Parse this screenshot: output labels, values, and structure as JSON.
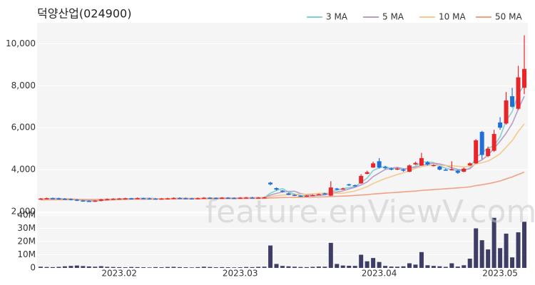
{
  "chart_data": {
    "type": "candlestick",
    "title": "덕양산업(024900)",
    "watermark": "feature.enViewV.com",
    "categories": [
      null,
      null,
      null,
      null,
      null,
      null,
      null,
      null,
      null,
      null,
      null,
      null,
      null,
      "2023.02",
      null,
      null,
      null,
      null,
      null,
      null,
      null,
      null,
      null,
      null,
      null,
      null,
      null,
      null,
      null,
      null,
      null,
      null,
      null,
      "2023.03",
      null,
      null,
      null,
      null,
      null,
      null,
      null,
      null,
      null,
      null,
      null,
      null,
      null,
      null,
      null,
      null,
      null,
      null,
      null,
      null,
      null,
      null,
      "2023.04",
      null,
      null,
      null,
      null,
      null,
      null,
      null,
      null,
      null,
      null,
      null,
      null,
      null,
      null,
      null,
      null,
      null,
      null,
      null,
      "2023.05",
      null,
      null,
      null,
      null
    ],
    "open": [
      2600,
      2620,
      2640,
      2630,
      2610,
      2600,
      2570,
      2530,
      2510,
      2500,
      2520,
      2580,
      2600,
      2610,
      2620,
      2630,
      2620,
      2640,
      2630,
      2620,
      2610,
      2620,
      2630,
      2650,
      2640,
      2630,
      2620,
      2640,
      2660,
      2650,
      2640,
      2660,
      2650,
      2640,
      2660,
      2670,
      2650,
      2670,
      3380,
      3120,
      3000,
      2870,
      2800,
      2760,
      2720,
      2760,
      2800,
      2870,
      2760,
      3100,
      3060,
      3300,
      3260,
      3350,
      3800,
      4100,
      4400,
      4120,
      4050,
      4000,
      4000,
      3900,
      4250,
      4200,
      4350,
      4180,
      4150,
      4000,
      4000,
      3950,
      3900,
      4200,
      4300,
      5800,
      4650,
      4900,
      6250,
      6200,
      7500,
      6900,
      7900
    ],
    "high": [
      2650,
      2670,
      2670,
      2660,
      2640,
      2630,
      2600,
      2560,
      2540,
      2550,
      2610,
      2630,
      2640,
      2650,
      2660,
      2660,
      2670,
      2670,
      2660,
      2650,
      2650,
      2660,
      2680,
      2680,
      2670,
      2660,
      2670,
      2690,
      2690,
      2680,
      2690,
      2690,
      2680,
      2690,
      2700,
      2700,
      2700,
      2710,
      3420,
      3150,
      3030,
      2900,
      2830,
      2780,
      2790,
      2820,
      2860,
      2900,
      3450,
      3130,
      3140,
      3330,
      3290,
      3780,
      3950,
      4380,
      4550,
      4180,
      4100,
      4100,
      4050,
      4250,
      4380,
      4800,
      4400,
      4260,
      4180,
      4050,
      4400,
      3990,
      4100,
      4350,
      5450,
      5850,
      5100,
      5900,
      6500,
      7700,
      7900,
      8950,
      10400
    ],
    "low": [
      2570,
      2590,
      2600,
      2580,
      2570,
      2540,
      2500,
      2480,
      2470,
      2470,
      2490,
      2550,
      2570,
      2580,
      2590,
      2590,
      2590,
      2600,
      2590,
      2580,
      2580,
      2590,
      2600,
      2610,
      2600,
      2590,
      2590,
      2610,
      2620,
      2620,
      2610,
      2630,
      2610,
      2610,
      2630,
      2620,
      2620,
      2640,
      3250,
      3000,
      2920,
      2780,
      2740,
      2700,
      2700,
      2740,
      2780,
      2820,
      2740,
      3020,
      3040,
      3220,
      3180,
      3320,
      3780,
      4080,
      4050,
      4030,
      3970,
      3980,
      3900,
      3880,
      4220,
      4180,
      4200,
      4150,
      3970,
      3950,
      3970,
      3800,
      3880,
      4180,
      4280,
      4500,
      4600,
      4850,
      5900,
      6150,
      6950,
      6850,
      7600
    ],
    "close": [
      2620,
      2640,
      2630,
      2610,
      2600,
      2570,
      2530,
      2510,
      2500,
      2520,
      2580,
      2600,
      2610,
      2620,
      2630,
      2620,
      2640,
      2630,
      2620,
      2610,
      2620,
      2630,
      2650,
      2640,
      2630,
      2620,
      2640,
      2660,
      2650,
      2640,
      2660,
      2650,
      2640,
      2660,
      2670,
      2650,
      2670,
      2680,
      3300,
      3050,
      2950,
      2800,
      2760,
      2720,
      2760,
      2790,
      2830,
      2840,
      3150,
      3060,
      3100,
      3250,
      3220,
      3700,
      3880,
      4300,
      4100,
      4080,
      4000,
      4050,
      3950,
      4200,
      4320,
      4550,
      4250,
      4220,
      4000,
      3980,
      4020,
      3850,
      4050,
      4300,
      5400,
      4700,
      5000,
      5700,
      6000,
      7300,
      7000,
      8400,
      8800
    ],
    "up_color": "#e8262a",
    "down_color": "#1f6fd8",
    "ylim": [
      2000,
      11000
    ],
    "yticks": [
      {
        "value": 2000,
        "label": "2,000"
      },
      {
        "value": 4000,
        "label": "4,000"
      },
      {
        "value": 6000,
        "label": "6,000"
      },
      {
        "value": 8000,
        "label": "8,000"
      },
      {
        "value": 10000,
        "label": "10,000"
      }
    ],
    "grid": true,
    "legend": "top-right",
    "series": [
      {
        "name": "3 MA",
        "color": "#7fd3d3",
        "values": [
          2610,
          2620,
          2630,
          2630,
          2610,
          2590,
          2570,
          2540,
          2510,
          2510,
          2530,
          2570,
          2600,
          2610,
          2620,
          2620,
          2630,
          2630,
          2630,
          2620,
          2620,
          2620,
          2630,
          2640,
          2640,
          2630,
          2630,
          2640,
          2650,
          2650,
          2650,
          2650,
          2650,
          2650,
          2660,
          2660,
          2660,
          2670,
          2880,
          3010,
          3100,
          2930,
          2840,
          2760,
          2750,
          2760,
          2790,
          2820,
          2940,
          3020,
          3100,
          3140,
          3190,
          3390,
          3600,
          3960,
          4090,
          4160,
          4060,
          4040,
          4000,
          4070,
          4160,
          4360,
          4370,
          4340,
          4160,
          4070,
          4000,
          3950,
          3970,
          4070,
          4580,
          4800,
          5030,
          5130,
          5570,
          6330,
          6770,
          7570,
          8070
        ]
      },
      {
        "name": "5 MA",
        "color": "#b89cc9",
        "values": [
          2600,
          2610,
          2620,
          2620,
          2620,
          2610,
          2590,
          2560,
          2540,
          2530,
          2530,
          2540,
          2560,
          2580,
          2600,
          2620,
          2620,
          2630,
          2630,
          2620,
          2620,
          2620,
          2620,
          2630,
          2630,
          2630,
          2630,
          2630,
          2640,
          2640,
          2650,
          2650,
          2650,
          2650,
          2660,
          2660,
          2660,
          2660,
          2790,
          2870,
          2930,
          2960,
          2970,
          2860,
          2800,
          2770,
          2780,
          2790,
          2870,
          2930,
          2990,
          3080,
          3160,
          3270,
          3410,
          3670,
          3840,
          4010,
          4070,
          4110,
          4040,
          4060,
          4110,
          4210,
          4250,
          4310,
          4270,
          4200,
          4090,
          4010,
          3980,
          4040,
          4320,
          4470,
          4690,
          5020,
          5360,
          5740,
          6200,
          6880,
          7500
        ]
      },
      {
        "name": "10 MA",
        "color": "#f2c98f",
        "values": [
          2590,
          2590,
          2600,
          2600,
          2600,
          2600,
          2590,
          2580,
          2570,
          2560,
          2560,
          2560,
          2560,
          2570,
          2580,
          2590,
          2600,
          2610,
          2620,
          2620,
          2620,
          2620,
          2620,
          2620,
          2630,
          2630,
          2630,
          2630,
          2640,
          2640,
          2640,
          2640,
          2640,
          2640,
          2650,
          2650,
          2650,
          2650,
          2720,
          2760,
          2790,
          2810,
          2820,
          2830,
          2830,
          2850,
          2870,
          2880,
          2870,
          2870,
          2880,
          2930,
          2980,
          3080,
          3190,
          3340,
          3460,
          3580,
          3670,
          3770,
          3850,
          3950,
          4060,
          4140,
          4190,
          4210,
          4200,
          4190,
          4190,
          4160,
          4140,
          4150,
          4270,
          4330,
          4410,
          4570,
          4760,
          5070,
          5380,
          5820,
          6180
        ]
      },
      {
        "name": "50 MA",
        "color": "#f2a084",
        "values": [
          2560,
          2560,
          2565,
          2565,
          2570,
          2570,
          2570,
          2575,
          2575,
          2575,
          2580,
          2580,
          2580,
          2585,
          2585,
          2590,
          2590,
          2590,
          2595,
          2595,
          2600,
          2600,
          2600,
          2605,
          2605,
          2610,
          2610,
          2610,
          2615,
          2615,
          2620,
          2620,
          2620,
          2625,
          2625,
          2630,
          2630,
          2635,
          2650,
          2660,
          2670,
          2675,
          2680,
          2685,
          2690,
          2695,
          2700,
          2705,
          2720,
          2730,
          2740,
          2755,
          2770,
          2790,
          2810,
          2840,
          2860,
          2880,
          2900,
          2920,
          2940,
          2960,
          2980,
          3010,
          3030,
          3050,
          3070,
          3090,
          3110,
          3130,
          3150,
          3180,
          3240,
          3280,
          3330,
          3390,
          3460,
          3560,
          3650,
          3770,
          3880
        ]
      }
    ],
    "volume": {
      "color": "#3d3d66",
      "ylim": [
        0,
        40000000
      ],
      "yticks": [
        0,
        {
          "value": 10000000,
          "label": "10M"
        },
        {
          "value": 20000000,
          "label": "20M"
        },
        {
          "value": 30000000,
          "label": "30M"
        },
        {
          "value": 40000000,
          "label": "40M"
        }
      ],
      "values": [
        900000,
        700000,
        600000,
        800000,
        1200000,
        1500000,
        1800000,
        1400000,
        1100000,
        900000,
        1300000,
        800000,
        700000,
        600000,
        500000,
        700000,
        600000,
        500000,
        400000,
        600000,
        500000,
        700000,
        800000,
        600000,
        500000,
        400000,
        600000,
        900000,
        700000,
        500000,
        600000,
        500000,
        400000,
        500000,
        700000,
        600000,
        800000,
        900000,
        17000000,
        3000000,
        1500000,
        1200000,
        900000,
        700000,
        600000,
        800000,
        1000000,
        900000,
        19000000,
        3000000,
        1800000,
        1600000,
        1500000,
        10000000,
        5000000,
        7500000,
        4500000,
        1500000,
        1000000,
        900000,
        1200000,
        3500000,
        2500000,
        12000000,
        2000000,
        1500000,
        1200000,
        800000,
        3500000,
        1000000,
        2000000,
        7000000,
        30000000,
        21000000,
        14000000,
        38000000,
        15000000,
        26000000,
        8000000,
        27000000,
        35000000
      ]
    }
  }
}
